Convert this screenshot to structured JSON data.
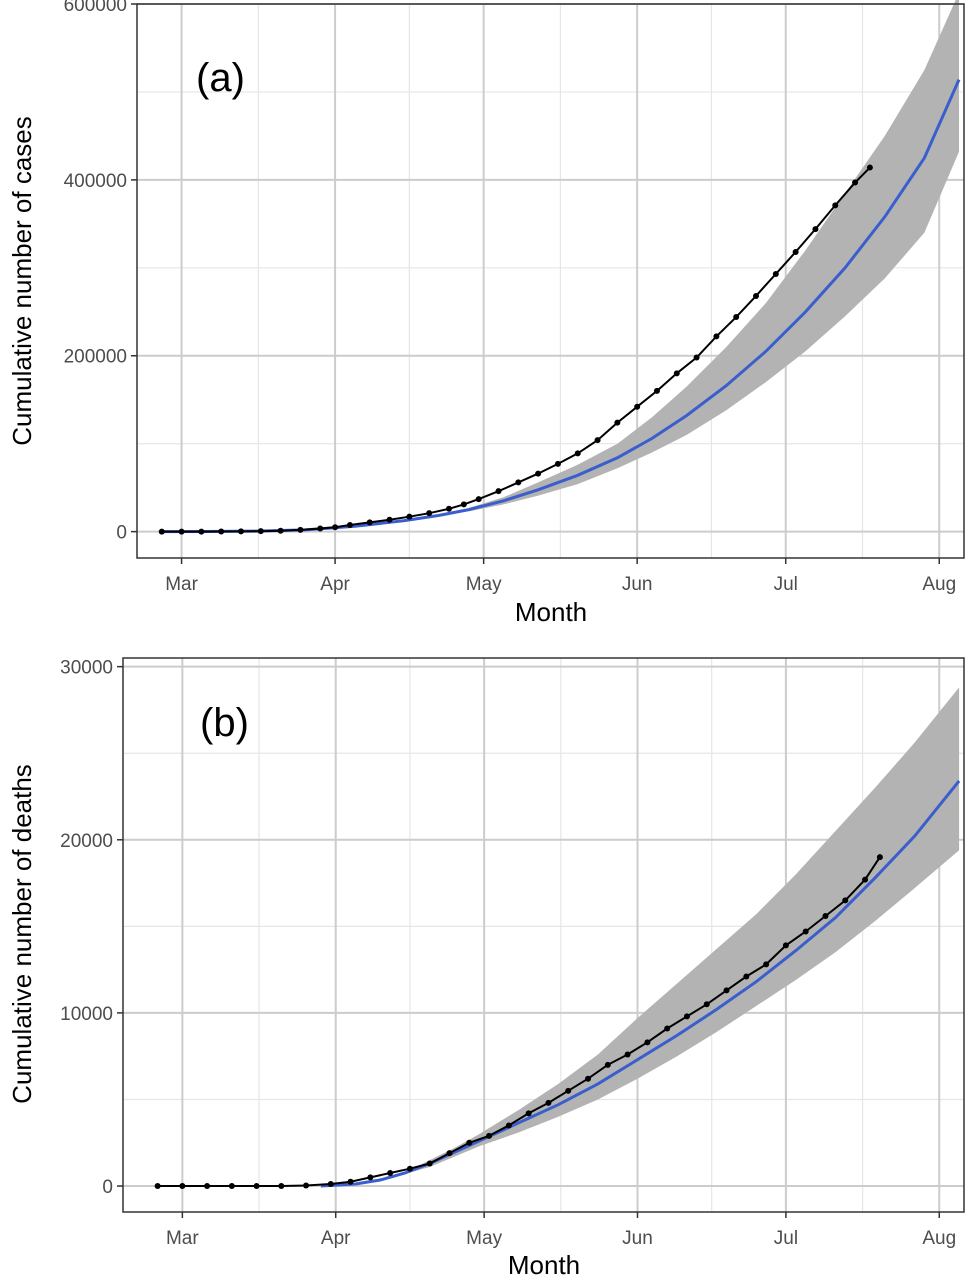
{
  "colors": {
    "panel_border": "#333333",
    "grid_major": "#cccccc",
    "grid_minor": "#e6e6e6",
    "ribbon": "#b3b3b3",
    "fit_line": "#3a5fcd",
    "points": "#000000"
  },
  "chart_data": [
    {
      "type": "line",
      "panel_tag": "(a)",
      "xlabel": "Month",
      "ylabel": "Cumulative number of cases",
      "x_ticks": [
        "Mar",
        "Apr",
        "May",
        "Jun",
        "Jul",
        "Aug"
      ],
      "x_tick_days": [
        60,
        91,
        121,
        152,
        182,
        213
      ],
      "y_ticks": [
        "0",
        "200000",
        "400000",
        "600000"
      ],
      "y_tick_values": [
        0,
        200000,
        400000,
        600000
      ],
      "xlim_days": [
        51,
        218
      ],
      "ylim": [
        -30000,
        600000
      ],
      "grid": true,
      "series": [
        {
          "style": "points",
          "x_days": [
            56,
            60,
            64,
            68,
            72,
            76,
            80,
            84,
            88,
            91,
            94,
            98,
            102,
            106,
            110,
            114,
            117,
            120,
            124,
            128,
            132,
            136,
            140,
            144,
            148,
            152,
            156,
            160,
            164,
            168,
            172,
            176,
            180,
            184,
            188,
            192,
            196,
            199
          ],
          "values": [
            0,
            0,
            0,
            100,
            300,
            500,
            1000,
            2000,
            3500,
            5000,
            7500,
            10500,
            13500,
            17000,
            21000,
            26000,
            31000,
            37000,
            46000,
            56000,
            66000,
            77000,
            89000,
            104000,
            124000,
            142000,
            160000,
            180000,
            198000,
            222000,
            244000,
            268000,
            293000,
            318000,
            344000,
            371000,
            397000,
            414000
          ]
        },
        {
          "style": "fit",
          "x_days": [
            56,
            65,
            75,
            85,
            95,
            105,
            112,
            118,
            125,
            132,
            140,
            148,
            155,
            162,
            170,
            178,
            186,
            194,
            202,
            210,
            217
          ],
          "values": [
            0,
            100,
            600,
            2000,
            6000,
            12500,
            18500,
            25000,
            35000,
            47500,
            64000,
            84000,
            106000,
            132000,
            166000,
            205000,
            250000,
            300000,
            358000,
            425000,
            514000
          ]
        },
        {
          "style": "ribbon",
          "x_days": [
            118,
            125,
            132,
            140,
            148,
            155,
            162,
            170,
            178,
            186,
            194,
            202,
            210,
            217
          ],
          "upper": [
            27000,
            39000,
            56000,
            76000,
            100000,
            130000,
            165000,
            210000,
            260000,
            320000,
            385000,
            450000,
            525000,
            613000
          ],
          "lower": [
            23000,
            31000,
            41000,
            54000,
            72000,
            90000,
            110000,
            138000,
            170000,
            205000,
            245000,
            288000,
            340000,
            432000
          ]
        }
      ]
    },
    {
      "type": "line",
      "panel_tag": "(b)",
      "xlabel": "Month",
      "ylabel": "Cumulative number of deaths",
      "x_ticks": [
        "Mar",
        "Apr",
        "May",
        "Jun",
        "Jul",
        "Aug"
      ],
      "x_tick_days": [
        60,
        91,
        121,
        152,
        182,
        213
      ],
      "y_ticks": [
        "0",
        "10000",
        "20000",
        "30000"
      ],
      "y_tick_values": [
        0,
        10000,
        20000,
        30000
      ],
      "xlim_days": [
        48,
        218
      ],
      "ylim": [
        -1500,
        30500
      ],
      "grid": true,
      "series": [
        {
          "style": "points",
          "x_days": [
            55,
            60,
            65,
            70,
            75,
            80,
            85,
            90,
            94,
            98,
            102,
            106,
            110,
            114,
            118,
            122,
            126,
            130,
            134,
            138,
            142,
            146,
            150,
            154,
            158,
            162,
            166,
            170,
            174,
            178,
            182,
            186,
            190,
            194,
            198,
            201
          ],
          "values": [
            0,
            0,
            0,
            0,
            0,
            0,
            30,
            120,
            250,
            500,
            750,
            1000,
            1300,
            1900,
            2500,
            2900,
            3500,
            4200,
            4800,
            5500,
            6200,
            7000,
            7600,
            8300,
            9100,
            9800,
            10500,
            11300,
            12100,
            12800,
            13900,
            14700,
            15600,
            16500,
            17700,
            19000
          ]
        },
        {
          "style": "fit",
          "x_days": [
            88,
            95,
            100,
            105,
            110,
            115,
            120,
            128,
            136,
            144,
            152,
            160,
            168,
            176,
            184,
            192,
            200,
            208,
            217
          ],
          "values": [
            0,
            120,
            350,
            750,
            1300,
            1950,
            2600,
            3650,
            4700,
            5900,
            7300,
            8700,
            10200,
            11800,
            13600,
            15500,
            17800,
            20200,
            23400
          ]
        },
        {
          "style": "ribbon",
          "x_days": [
            105,
            110,
            115,
            120,
            128,
            136,
            144,
            152,
            160,
            168,
            176,
            184,
            192,
            200,
            208,
            217
          ],
          "upper": [
            800,
            1500,
            2200,
            3000,
            4400,
            5900,
            7600,
            9700,
            11700,
            13700,
            15700,
            18000,
            20500,
            23000,
            25600,
            28800
          ],
          "lower": [
            700,
            1100,
            1700,
            2300,
            3100,
            4000,
            5000,
            6200,
            7500,
            8900,
            10400,
            11900,
            13500,
            15300,
            17200,
            19400
          ]
        }
      ]
    }
  ]
}
